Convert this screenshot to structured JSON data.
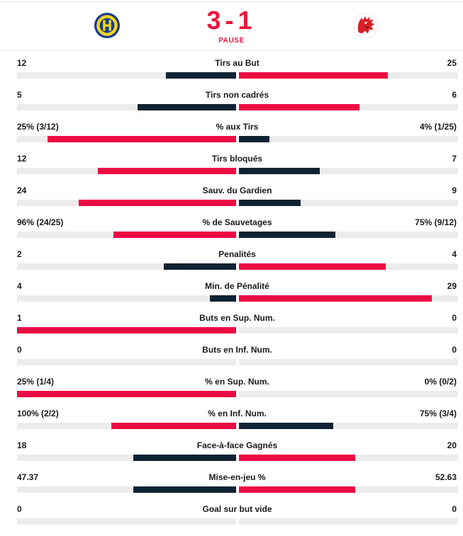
{
  "match": {
    "score": "3-1",
    "status": "PAUSE",
    "home_logo": "hc-davos-logo-icon",
    "away_logo": "lausanne-hc-lion-logo-icon"
  },
  "colors": {
    "accent": "#ec0b43",
    "dark": "#0f2332",
    "track": "#ececec"
  },
  "stats": [
    {
      "label": "Tirs au But",
      "left": "12",
      "right": "25",
      "left_ratio": 0.32,
      "right_ratio": 0.68,
      "left_color": "navy",
      "right_color": "red"
    },
    {
      "label": "Tirs non cadrés",
      "left": "5",
      "right": "6",
      "left_ratio": 0.45,
      "right_ratio": 0.55,
      "left_color": "navy",
      "right_color": "red"
    },
    {
      "label": "% aux Tirs",
      "left": "25% (3/12)",
      "right": "4% (1/25)",
      "left_ratio": 0.86,
      "right_ratio": 0.14,
      "left_color": "red",
      "right_color": "navy"
    },
    {
      "label": "Tirs bloqués",
      "left": "12",
      "right": "7",
      "left_ratio": 0.63,
      "right_ratio": 0.37,
      "left_color": "red",
      "right_color": "navy"
    },
    {
      "label": "Sauv. du Gardien",
      "left": "24",
      "right": "9",
      "left_ratio": 0.72,
      "right_ratio": 0.28,
      "left_color": "red",
      "right_color": "navy"
    },
    {
      "label": "% de Sauvetages",
      "left": "96% (24/25)",
      "right": "75% (9/12)",
      "left_ratio": 0.56,
      "right_ratio": 0.44,
      "left_color": "red",
      "right_color": "navy"
    },
    {
      "label": "Penalités",
      "left": "2",
      "right": "4",
      "left_ratio": 0.33,
      "right_ratio": 0.67,
      "left_color": "navy",
      "right_color": "red"
    },
    {
      "label": "Min. de Pénalité",
      "left": "4",
      "right": "29",
      "left_ratio": 0.12,
      "right_ratio": 0.88,
      "left_color": "navy",
      "right_color": "red"
    },
    {
      "label": "Buts en Sup. Num.",
      "left": "1",
      "right": "0",
      "left_ratio": 1.0,
      "right_ratio": 0.0,
      "left_color": "red",
      "right_color": "navy"
    },
    {
      "label": "Buts en Inf. Num.",
      "left": "0",
      "right": "0",
      "left_ratio": 0.0,
      "right_ratio": 0.0,
      "left_color": "navy",
      "right_color": "navy"
    },
    {
      "label": "% en Sup. Num.",
      "left": "25% (1/4)",
      "right": "0% (0/2)",
      "left_ratio": 1.0,
      "right_ratio": 0.0,
      "left_color": "red",
      "right_color": "navy"
    },
    {
      "label": "% en Inf. Num.",
      "left": "100% (2/2)",
      "right": "75% (3/4)",
      "left_ratio": 0.57,
      "right_ratio": 0.43,
      "left_color": "red",
      "right_color": "navy"
    },
    {
      "label": "Face-à-face Gagnés",
      "left": "18",
      "right": "20",
      "left_ratio": 0.47,
      "right_ratio": 0.53,
      "left_color": "navy",
      "right_color": "red"
    },
    {
      "label": "Mise-en-jeu %",
      "left": "47.37",
      "right": "52.63",
      "left_ratio": 0.47,
      "right_ratio": 0.53,
      "left_color": "navy",
      "right_color": "red"
    },
    {
      "label": "Goal sur but vide",
      "left": "0",
      "right": "0",
      "left_ratio": 0.0,
      "right_ratio": 0.0,
      "left_color": "navy",
      "right_color": "navy"
    }
  ]
}
